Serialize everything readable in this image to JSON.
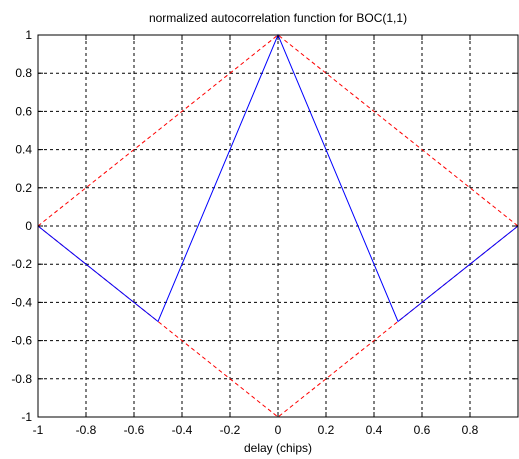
{
  "chart_data": {
    "type": "line",
    "title": "normalized autocorrelation function for BOC(1,1)",
    "xlabel": "delay (chips)",
    "ylabel": "",
    "xlim": [
      -1,
      1
    ],
    "ylim": [
      -1,
      1
    ],
    "grid": true,
    "x_ticks": [
      -1,
      -0.8,
      -0.6,
      -0.4,
      -0.2,
      0,
      0.2,
      0.4,
      0.6,
      0.8
    ],
    "y_ticks": [
      -1,
      -0.8,
      -0.6,
      -0.4,
      -0.2,
      0,
      0.2,
      0.4,
      0.6,
      0.8,
      1
    ],
    "x_tick_labels": [
      "-1",
      "-0.8",
      "-0.6",
      "-0.4",
      "-0.2",
      "0",
      "0.2",
      "0.4",
      "0.6",
      "0.8"
    ],
    "y_tick_labels": [
      "-1",
      "-0.8",
      "-0.6",
      "-0.4",
      "-0.2",
      "0",
      "0.2",
      "0.4",
      "0.6",
      "0.8",
      "1"
    ],
    "series": [
      {
        "color": "#0000ff",
        "style": "solid",
        "x": [
          -1,
          -0.5,
          0,
          0.5,
          1
        ],
        "y": [
          0,
          -0.5,
          1,
          -0.5,
          0
        ]
      },
      {
        "color": "#ff0000",
        "style": "dashed",
        "x": [
          -1,
          0,
          1
        ],
        "y": [
          0,
          1,
          0
        ]
      },
      {
        "color": "#ff0000",
        "style": "dashed",
        "x": [
          -1,
          0,
          1
        ],
        "y": [
          0,
          -1,
          0
        ]
      }
    ]
  }
}
